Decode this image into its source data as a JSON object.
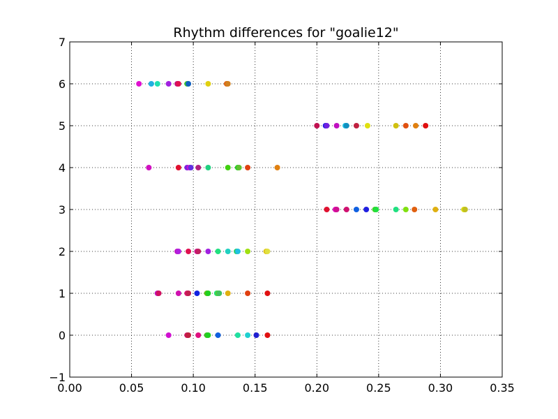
{
  "chart_data": {
    "type": "scatter",
    "title": "Rhythm differences for \"goalie12\"",
    "xlabel": "",
    "ylabel": "",
    "xlim": [
      0.0,
      0.35
    ],
    "ylim": [
      -1,
      7
    ],
    "grid": true,
    "legend": "none",
    "xticks": [
      "0.00",
      "0.05",
      "0.10",
      "0.15",
      "0.20",
      "0.25",
      "0.30",
      "0.35"
    ],
    "yticks": [
      "−1",
      "0",
      "1",
      "2",
      "3",
      "4",
      "5",
      "6",
      "7"
    ],
    "xtick_values": [
      0.0,
      0.05,
      0.1,
      0.15,
      0.2,
      0.25,
      0.3,
      0.35
    ],
    "ytick_values": [
      -1,
      0,
      1,
      2,
      3,
      4,
      5,
      6,
      7
    ],
    "series": [
      {
        "y": 0,
        "points": [
          {
            "x": 0.08,
            "color": "#d010d0"
          },
          {
            "x": 0.095,
            "color": "#d01060"
          },
          {
            "x": 0.096,
            "color": "#c02040"
          },
          {
            "x": 0.104,
            "color": "#e01080"
          },
          {
            "x": 0.111,
            "color": "#40c020"
          },
          {
            "x": 0.112,
            "color": "#20d020"
          },
          {
            "x": 0.12,
            "color": "#1060e0"
          },
          {
            "x": 0.136,
            "color": "#20e0a0"
          },
          {
            "x": 0.144,
            "color": "#20d0d0"
          },
          {
            "x": 0.151,
            "color": "#2020d0"
          },
          {
            "x": 0.16,
            "color": "#e01010"
          }
        ]
      },
      {
        "y": 1,
        "points": [
          {
            "x": 0.071,
            "color": "#c010c0"
          },
          {
            "x": 0.072,
            "color": "#d01060"
          },
          {
            "x": 0.088,
            "color": "#d010b0"
          },
          {
            "x": 0.095,
            "color": "#e01070"
          },
          {
            "x": 0.096,
            "color": "#c02050"
          },
          {
            "x": 0.103,
            "color": "#1020e0"
          },
          {
            "x": 0.111,
            "color": "#60c010"
          },
          {
            "x": 0.112,
            "color": "#20d020"
          },
          {
            "x": 0.119,
            "color": "#20e080"
          },
          {
            "x": 0.12,
            "color": "#50d030"
          },
          {
            "x": 0.121,
            "color": "#40c060"
          },
          {
            "x": 0.128,
            "color": "#e0b010"
          },
          {
            "x": 0.144,
            "color": "#e04010"
          },
          {
            "x": 0.16,
            "color": "#e01010"
          }
        ]
      },
      {
        "y": 2,
        "points": [
          {
            "x": 0.087,
            "color": "#c010c0"
          },
          {
            "x": 0.088,
            "color": "#b020e0"
          },
          {
            "x": 0.096,
            "color": "#e01050"
          },
          {
            "x": 0.103,
            "color": "#d01090"
          },
          {
            "x": 0.104,
            "color": "#c02060"
          },
          {
            "x": 0.112,
            "color": "#a020e0"
          },
          {
            "x": 0.12,
            "color": "#20e080"
          },
          {
            "x": 0.128,
            "color": "#20d0c0"
          },
          {
            "x": 0.135,
            "color": "#20d060"
          },
          {
            "x": 0.136,
            "color": "#20c0e0"
          },
          {
            "x": 0.144,
            "color": "#a0e010"
          },
          {
            "x": 0.159,
            "color": "#e0c010"
          },
          {
            "x": 0.16,
            "color": "#e0e040"
          }
        ]
      },
      {
        "y": 3,
        "points": [
          {
            "x": 0.208,
            "color": "#e01030"
          },
          {
            "x": 0.215,
            "color": "#e010c0"
          },
          {
            "x": 0.216,
            "color": "#d01090"
          },
          {
            "x": 0.224,
            "color": "#d01070"
          },
          {
            "x": 0.232,
            "color": "#1060e0"
          },
          {
            "x": 0.24,
            "color": "#2020e0"
          },
          {
            "x": 0.247,
            "color": "#40d020"
          },
          {
            "x": 0.248,
            "color": "#20e040"
          },
          {
            "x": 0.264,
            "color": "#20e080"
          },
          {
            "x": 0.272,
            "color": "#80e010"
          },
          {
            "x": 0.279,
            "color": "#e06010"
          },
          {
            "x": 0.296,
            "color": "#e0b010"
          },
          {
            "x": 0.319,
            "color": "#e0e010"
          },
          {
            "x": 0.32,
            "color": "#c0c020"
          }
        ]
      },
      {
        "y": 4,
        "points": [
          {
            "x": 0.064,
            "color": "#d010c0"
          },
          {
            "x": 0.088,
            "color": "#e01030"
          },
          {
            "x": 0.095,
            "color": "#8020e0"
          },
          {
            "x": 0.097,
            "color": "#d010d0"
          },
          {
            "x": 0.098,
            "color": "#6030e0"
          },
          {
            "x": 0.104,
            "color": "#b02080"
          },
          {
            "x": 0.112,
            "color": "#20d080"
          },
          {
            "x": 0.128,
            "color": "#40d010"
          },
          {
            "x": 0.136,
            "color": "#20d020"
          },
          {
            "x": 0.137,
            "color": "#60c030"
          },
          {
            "x": 0.144,
            "color": "#e04010"
          },
          {
            "x": 0.168,
            "color": "#e08010"
          }
        ]
      },
      {
        "y": 5,
        "points": [
          {
            "x": 0.2,
            "color": "#c01050"
          },
          {
            "x": 0.207,
            "color": "#2020e0"
          },
          {
            "x": 0.208,
            "color": "#7020e0"
          },
          {
            "x": 0.216,
            "color": "#c010c0"
          },
          {
            "x": 0.223,
            "color": "#20c0e0"
          },
          {
            "x": 0.224,
            "color": "#1090c0"
          },
          {
            "x": 0.232,
            "color": "#c02040"
          },
          {
            "x": 0.241,
            "color": "#e0e010"
          },
          {
            "x": 0.264,
            "color": "#d0c010"
          },
          {
            "x": 0.272,
            "color": "#e05010"
          },
          {
            "x": 0.28,
            "color": "#e08010"
          },
          {
            "x": 0.288,
            "color": "#e01010"
          }
        ]
      },
      {
        "y": 6,
        "points": [
          {
            "x": 0.056,
            "color": "#e010d0"
          },
          {
            "x": 0.066,
            "color": "#20b0e0"
          },
          {
            "x": 0.071,
            "color": "#20e0b0"
          },
          {
            "x": 0.08,
            "color": "#a020e0"
          },
          {
            "x": 0.087,
            "color": "#c01080"
          },
          {
            "x": 0.088,
            "color": "#e01050"
          },
          {
            "x": 0.095,
            "color": "#40d020"
          },
          {
            "x": 0.096,
            "color": "#1060c0"
          },
          {
            "x": 0.112,
            "color": "#e0d010"
          },
          {
            "x": 0.127,
            "color": "#e06010"
          },
          {
            "x": 0.128,
            "color": "#d08020"
          }
        ]
      }
    ]
  }
}
